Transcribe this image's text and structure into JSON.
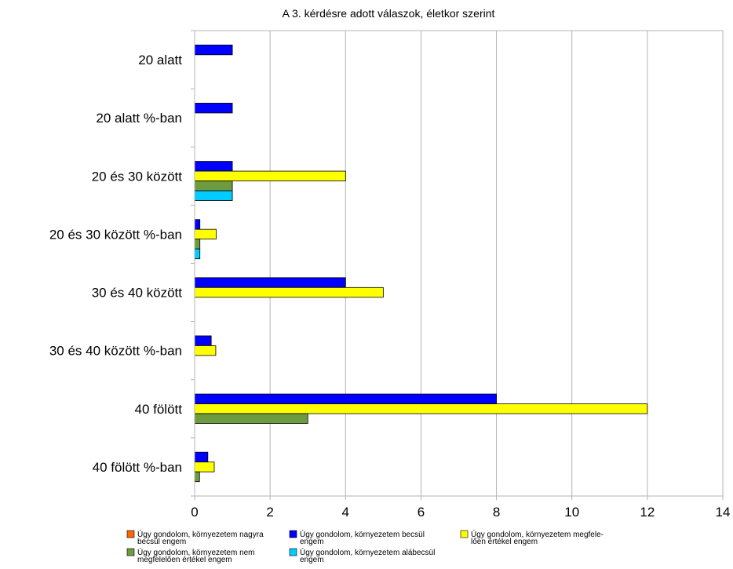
{
  "chart_data": {
    "type": "bar",
    "orientation": "horizontal",
    "title": "A 3. kérdésre adott válaszok, életkor szerint",
    "xlabel": "",
    "ylabel": "",
    "xlim": [
      0,
      14
    ],
    "xticks": [
      0,
      2,
      4,
      6,
      8,
      10,
      12,
      14
    ],
    "grid": true,
    "legend_position": "bottom",
    "categories": [
      "20 alatt",
      "20 alatt %-ban",
      "20 és 30 között",
      "20 és 30 között %-ban",
      "30 és 40 között",
      "30 és 40 között %-ban",
      "40 fölött",
      "40 fölött %-ban"
    ],
    "series": [
      {
        "name": "Úgy gondolom, környezetem nagyra becsül engem",
        "legend_lines": [
          "Úgy gondolom, környezetem nagyra",
          "becsül engem"
        ],
        "color": "#ff6600",
        "values": [
          0,
          0,
          0,
          0,
          0,
          0,
          0,
          0
        ]
      },
      {
        "name": "Úgy gondolom, környezetem becsül engem",
        "legend_lines": [
          "Úgy gondolom, környezetem becsül",
          "engem"
        ],
        "color": "#0000ff",
        "values": [
          1,
          1,
          1,
          0.14,
          4,
          0.44,
          8,
          0.35
        ]
      },
      {
        "name": "Úgy gondolom, környezetem megfelelően értékel engem",
        "legend_lines": [
          "Úgy gondolom, környezetem megfele-",
          "lően értékel engem"
        ],
        "color": "#ffff00",
        "values": [
          0,
          0,
          4,
          0.57,
          5,
          0.56,
          12,
          0.52
        ]
      },
      {
        "name": "Úgy gondolom, környezetem nem megfelelően értékel engem",
        "legend_lines": [
          "Úgy gondolom, környezetem nem",
          "megfelelően értékel engem"
        ],
        "color": "#6e9b3f",
        "values": [
          0,
          0,
          1,
          0.14,
          0,
          0,
          3,
          0.13
        ]
      },
      {
        "name": "Úgy gondolom, környezetem alábecsül engem",
        "legend_lines": [
          "Úgy gondolom, környezetem alábecsül",
          "engem"
        ],
        "color": "#00ccff",
        "values": [
          0,
          0,
          1,
          0.14,
          0,
          0,
          0,
          0
        ]
      }
    ]
  }
}
